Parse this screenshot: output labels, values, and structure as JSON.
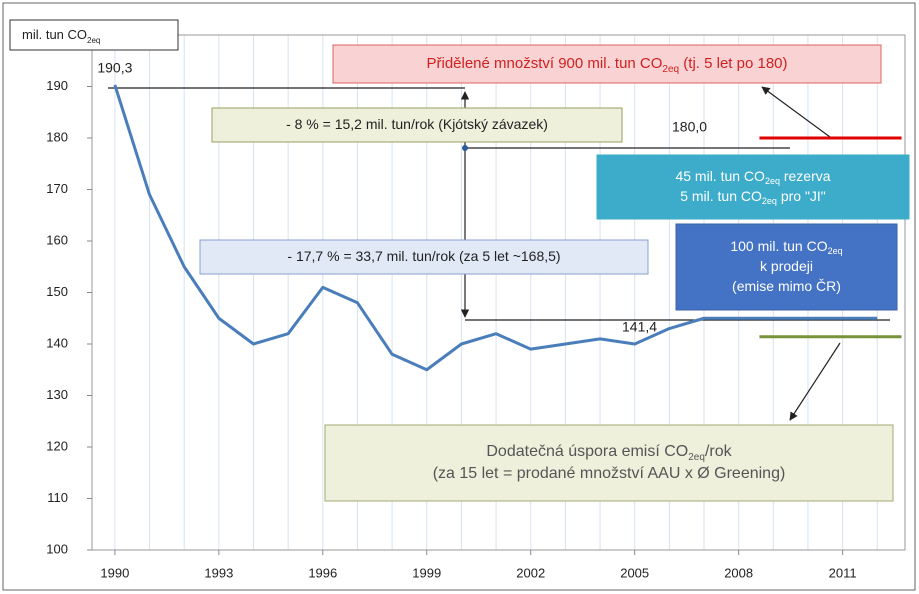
{
  "chart_data": {
    "type": "line",
    "axis_label": [
      [
        "mil. tun CO",
        {
          "text": "2eq",
          "sub": true
        }
      ]
    ],
    "x": [
      1990,
      1991,
      1992,
      1993,
      1994,
      1995,
      1996,
      1997,
      1998,
      1999,
      2000,
      2001,
      2002,
      2003,
      2004,
      2005,
      2006,
      2007,
      2008,
      2009,
      2010,
      2011,
      2012
    ],
    "series": [
      {
        "color": "#4a7ebb",
        "values": [
          190.3,
          169,
          155,
          145,
          140,
          142,
          151,
          148,
          138,
          135,
          140,
          142,
          139,
          140,
          141,
          140,
          143,
          145,
          145,
          145,
          145,
          145,
          145
        ]
      }
    ],
    "value_labels": [
      "190,3",
      null,
      null,
      null,
      null,
      null,
      null,
      null,
      null,
      null,
      null,
      null,
      null,
      null,
      null,
      null,
      null,
      null,
      null,
      null,
      null,
      null,
      null
    ],
    "xlim": [
      1989.34,
      2012.8
    ],
    "xticks": [
      1990,
      1993,
      1996,
      1999,
      2002,
      2005,
      2008,
      2011
    ],
    "ylim": [
      100,
      200
    ],
    "yticks": [
      100,
      110,
      120,
      130,
      140,
      150,
      160,
      170,
      180,
      190
    ],
    "grid": true,
    "reference_lines": [
      {
        "value": 180,
        "label": "180,0",
        "color": "#e00000",
        "from": 2008.6,
        "to": 2012.7
      },
      {
        "value": 141.4,
        "label": "141,4",
        "color": "#77933c",
        "from": 2008.6,
        "to": 2012.7
      }
    ],
    "annotations": [
      {
        "lines": [
          [
            "Přidělené množství 900 mil. tun CO",
            {
              "text": "2eq",
              "sub": true
            },
            " (tj. 5 let po 180)"
          ]
        ]
      },
      {
        "lines": [
          [
            "- 8 % = 15,2 mil. tun/rok  (Kjótský závazek)"
          ]
        ]
      },
      {
        "lines": [
          [
            "- 17,7 % = 33,7 mil. tun/rok  (za 5 let ~168,5)"
          ]
        ]
      },
      {
        "lines": [
          [
            "45 mil. tun CO",
            {
              "text": "2eq",
              "sub": true
            },
            "  rezerva"
          ],
          [
            "5 mil. tun CO",
            {
              "text": "2eq",
              "sub": true
            },
            " pro \"JI\""
          ]
        ]
      },
      {
        "lines": [
          [
            "100 mil. tun CO",
            {
              "text": "2eq",
              "sub": true
            }
          ],
          [
            "k prodeji"
          ],
          [
            "(emise mimo ČR)"
          ]
        ]
      },
      {
        "lines": [
          [
            "Dodatečná úspora emisí CO",
            {
              "text": "2eq",
              "sub": true
            },
            "/rok"
          ],
          [
            "(za 15 let = prodané množství  AAU x Ø Greening)"
          ]
        ]
      }
    ]
  }
}
